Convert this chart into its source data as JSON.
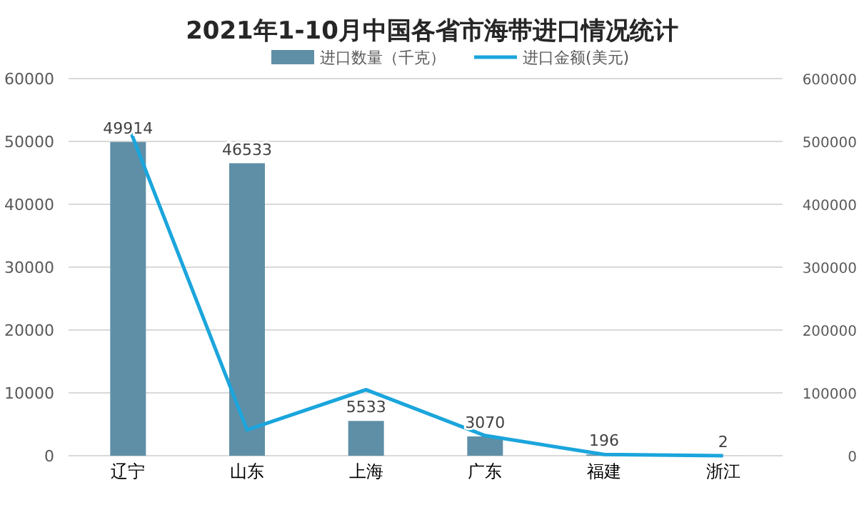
{
  "chart_data": {
    "type": "bar",
    "title": "2021年1-10月中国各省市海带进口情况统计",
    "categories": [
      "辽宁",
      "山东",
      "上海",
      "广东",
      "福建",
      "浙江"
    ],
    "series": [
      {
        "name": "进口数量（千克）",
        "color": "#5f8fa7",
        "values": [
          49914,
          46533,
          5533,
          3070,
          196,
          2
        ],
        "value_labels": [
          "49914",
          "46533",
          "5533",
          "3070",
          "196",
          "2"
        ]
      },
      {
        "name": "进口金额(美元)",
        "type": "line",
        "axis": "y2",
        "color": "#1ba5dc",
        "values": [
          526000,
          41000,
          105000,
          32000,
          2000,
          0
        ]
      }
    ],
    "ylim": [
      0,
      60000
    ],
    "yticks": [
      0,
      10000,
      20000,
      30000,
      40000,
      50000,
      60000
    ],
    "y2lim": [
      0,
      600000
    ],
    "y2ticks": [
      0,
      100000,
      200000,
      300000,
      400000,
      500000,
      600000
    ],
    "grid": "y",
    "legend": "top"
  }
}
